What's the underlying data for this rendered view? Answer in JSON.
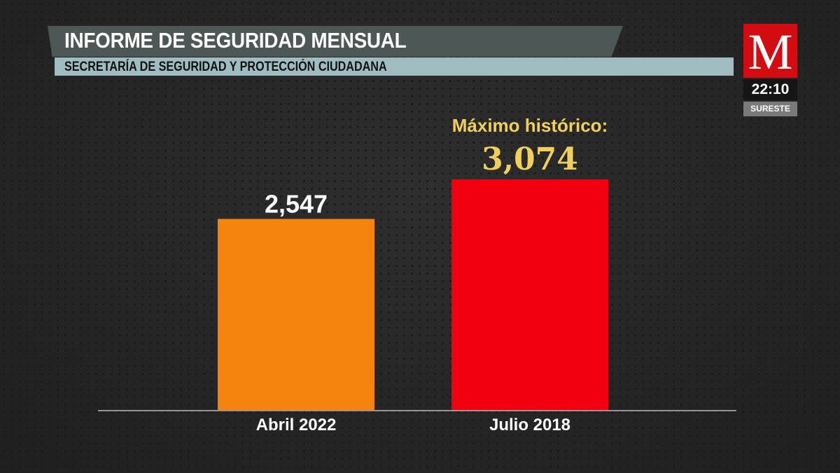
{
  "header": {
    "title": "INFORME DE SEGURIDAD MENSUAL",
    "subtitle": "SECRETARÍA DE SEGURIDAD Y PROTECCIÓN CIUDADANA"
  },
  "broadcast": {
    "logo": "M",
    "time": "22:10",
    "region": "SURESTE"
  },
  "chart_data": {
    "type": "bar",
    "categories": [
      "Abril 2022",
      "Julio 2018"
    ],
    "values": [
      2547,
      3074
    ],
    "value_labels": [
      "2,547",
      "3,074"
    ],
    "annotation": "Máximo histórico:",
    "colors": [
      "#f5840f",
      "#f2000f"
    ],
    "label_colors": [
      "#ffffff",
      "#f1cf5b"
    ],
    "ylim": [
      0,
      3074
    ],
    "grid": false
  }
}
